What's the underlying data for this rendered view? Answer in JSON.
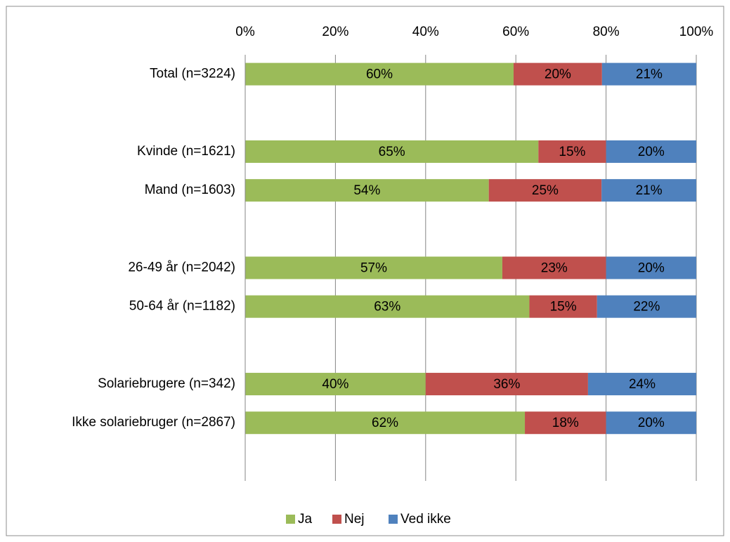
{
  "chart_data": {
    "type": "stacked_barh",
    "categories": [
      "Total (n=3224)",
      null,
      "Kvinde (n=1621)",
      "Mand (n=1603)",
      null,
      "26-49 år (n=2042)",
      "50-64 år (n=1182)",
      null,
      "Solariebrugere (n=342)",
      "Ikke solariebruger (n=2867)",
      null
    ],
    "series": [
      {
        "name": "Ja",
        "color": "#9bbb59",
        "values": [
          59.5,
          null,
          65,
          54,
          null,
          57,
          63,
          null,
          40,
          62,
          null
        ],
        "value_labels": [
          "60%",
          null,
          "65%",
          "54%",
          null,
          "57%",
          "63%",
          null,
          "40%",
          "62%",
          null
        ]
      },
      {
        "name": "Nej",
        "color": "#c0504d",
        "values": [
          19.6,
          null,
          15,
          25,
          null,
          23,
          15,
          null,
          36,
          18,
          null
        ],
        "value_labels": [
          "20%",
          null,
          "15%",
          "25%",
          null,
          "23%",
          "15%",
          null,
          "36%",
          "18%",
          null
        ]
      },
      {
        "name": "Ved ikke",
        "color": "#4f81bd",
        "values": [
          20.9,
          null,
          20,
          21,
          null,
          20,
          22,
          null,
          24,
          20,
          null
        ],
        "value_labels": [
          "21%",
          null,
          "20%",
          "21%",
          null,
          "20%",
          "22%",
          null,
          "24%",
          "20%",
          null
        ]
      }
    ],
    "xlim": [
      0,
      100
    ],
    "xticks": [
      {
        "value": 0,
        "label": "0%"
      },
      {
        "value": 20,
        "label": "20%"
      },
      {
        "value": 40,
        "label": "40%"
      },
      {
        "value": 60,
        "label": "60%"
      },
      {
        "value": 80,
        "label": "80%"
      },
      {
        "value": 100,
        "label": "100%"
      }
    ],
    "grid": true,
    "legend": "bottom"
  }
}
